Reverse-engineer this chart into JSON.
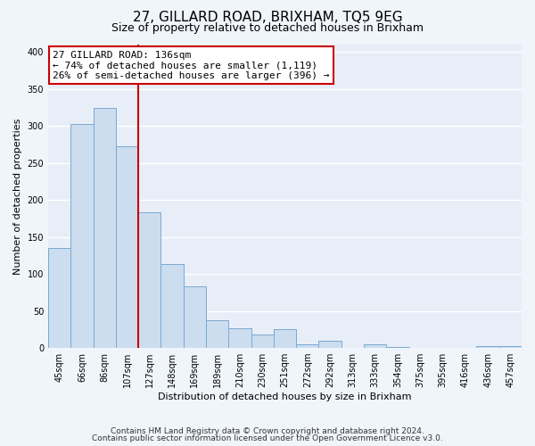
{
  "title": "27, GILLARD ROAD, BRIXHAM, TQ5 9EG",
  "subtitle": "Size of property relative to detached houses in Brixham",
  "xlabel": "Distribution of detached houses by size in Brixham",
  "ylabel": "Number of detached properties",
  "categories": [
    "45sqm",
    "66sqm",
    "86sqm",
    "107sqm",
    "127sqm",
    "148sqm",
    "169sqm",
    "189sqm",
    "210sqm",
    "230sqm",
    "251sqm",
    "272sqm",
    "292sqm",
    "313sqm",
    "333sqm",
    "354sqm",
    "375sqm",
    "395sqm",
    "416sqm",
    "436sqm",
    "457sqm"
  ],
  "values": [
    135,
    303,
    325,
    272,
    183,
    113,
    83,
    37,
    27,
    18,
    25,
    5,
    10,
    0,
    5,
    1,
    0,
    0,
    0,
    2,
    2
  ],
  "bar_color": "#ccddf0",
  "bar_edge_color": "#7aaad0",
  "vline_color": "#cc0000",
  "annotation_line1": "27 GILLARD ROAD: 136sqm",
  "annotation_line2": "← 74% of detached houses are smaller (1,119)",
  "annotation_line3": "26% of semi-detached houses are larger (396) →",
  "annotation_box_color": "#ffffff",
  "annotation_box_edge": "#cc0000",
  "ylim": [
    0,
    410
  ],
  "yticks": [
    0,
    50,
    100,
    150,
    200,
    250,
    300,
    350,
    400
  ],
  "footer_line1": "Contains HM Land Registry data © Crown copyright and database right 2024.",
  "footer_line2": "Contains public sector information licensed under the Open Government Licence v3.0.",
  "plot_bg_color": "#e8eef8",
  "fig_bg_color": "#f0f5fb",
  "grid_color": "#ffffff",
  "title_fontsize": 11,
  "subtitle_fontsize": 9,
  "axis_label_fontsize": 8,
  "tick_fontsize": 7,
  "annotation_fontsize": 8,
  "footer_fontsize": 6.5,
  "vline_x_index": 3.5
}
